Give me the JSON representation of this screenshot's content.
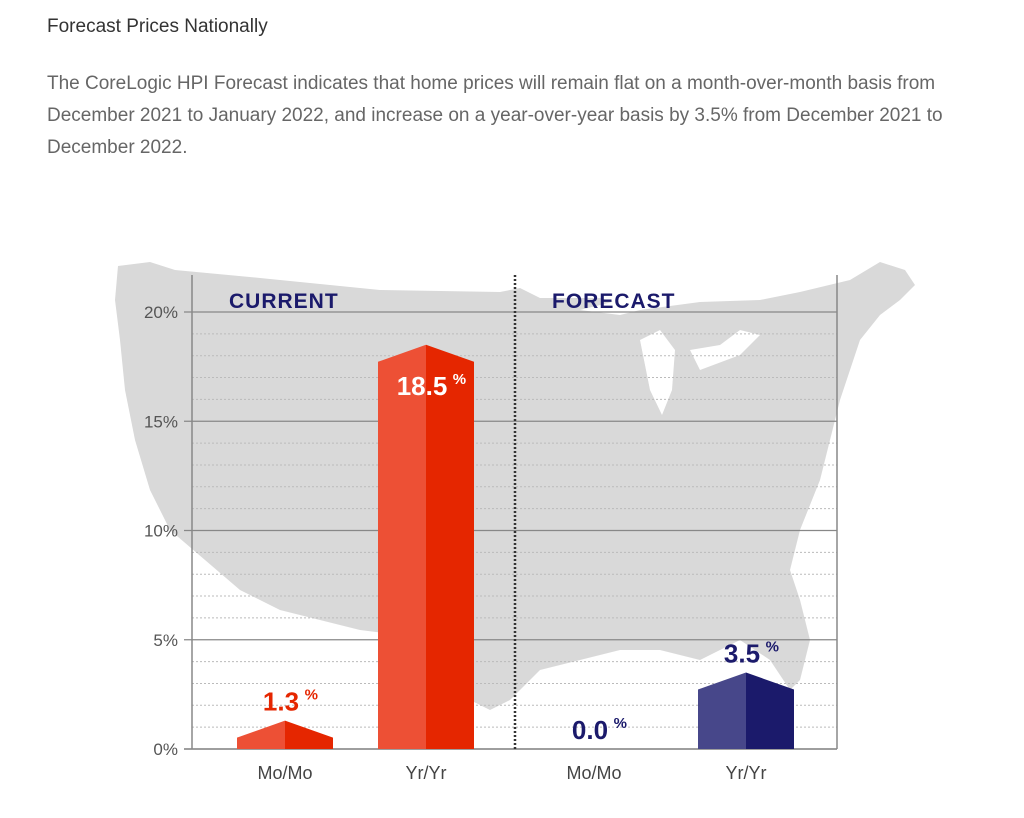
{
  "article": {
    "heading": "Forecast Prices Nationally",
    "paragraph": "The CoreLogic HPI Forecast indicates that home prices will remain flat on a month-over-month basis from December 2021 to January 2022, and increase on a year-over-year basis by 3.5% from December 2021 to December 2022."
  },
  "colors": {
    "current_light": "#ed5035",
    "current_dark": "#e52600",
    "forecast_light": "#47478a",
    "forecast_dark": "#1b1a6b",
    "section_label": "#1b1a6b",
    "map_fill": "#d9d9d9",
    "axis_text": "#555555"
  },
  "chart_data": {
    "type": "bar",
    "title": "",
    "xlabel": "",
    "ylabel": "",
    "ylim": [
      0,
      20
    ],
    "y_ticks": [
      0,
      5,
      10,
      15,
      20
    ],
    "y_tick_labels": [
      "0%",
      "5%",
      "10%",
      "15%",
      "20%"
    ],
    "grid": true,
    "groups": [
      {
        "name": "CURRENT",
        "categories": [
          "Mo/Mo",
          "Yr/Yr"
        ],
        "values": [
          1.3,
          18.5
        ],
        "labels": [
          "1.3",
          "18.5"
        ]
      },
      {
        "name": "FORECAST",
        "categories": [
          "Mo/Mo",
          "Yr/Yr"
        ],
        "values": [
          0.0,
          3.5
        ],
        "labels": [
          "0.0",
          "3.5"
        ]
      }
    ],
    "value_suffix": "%",
    "background": "map of the contiguous United States"
  }
}
